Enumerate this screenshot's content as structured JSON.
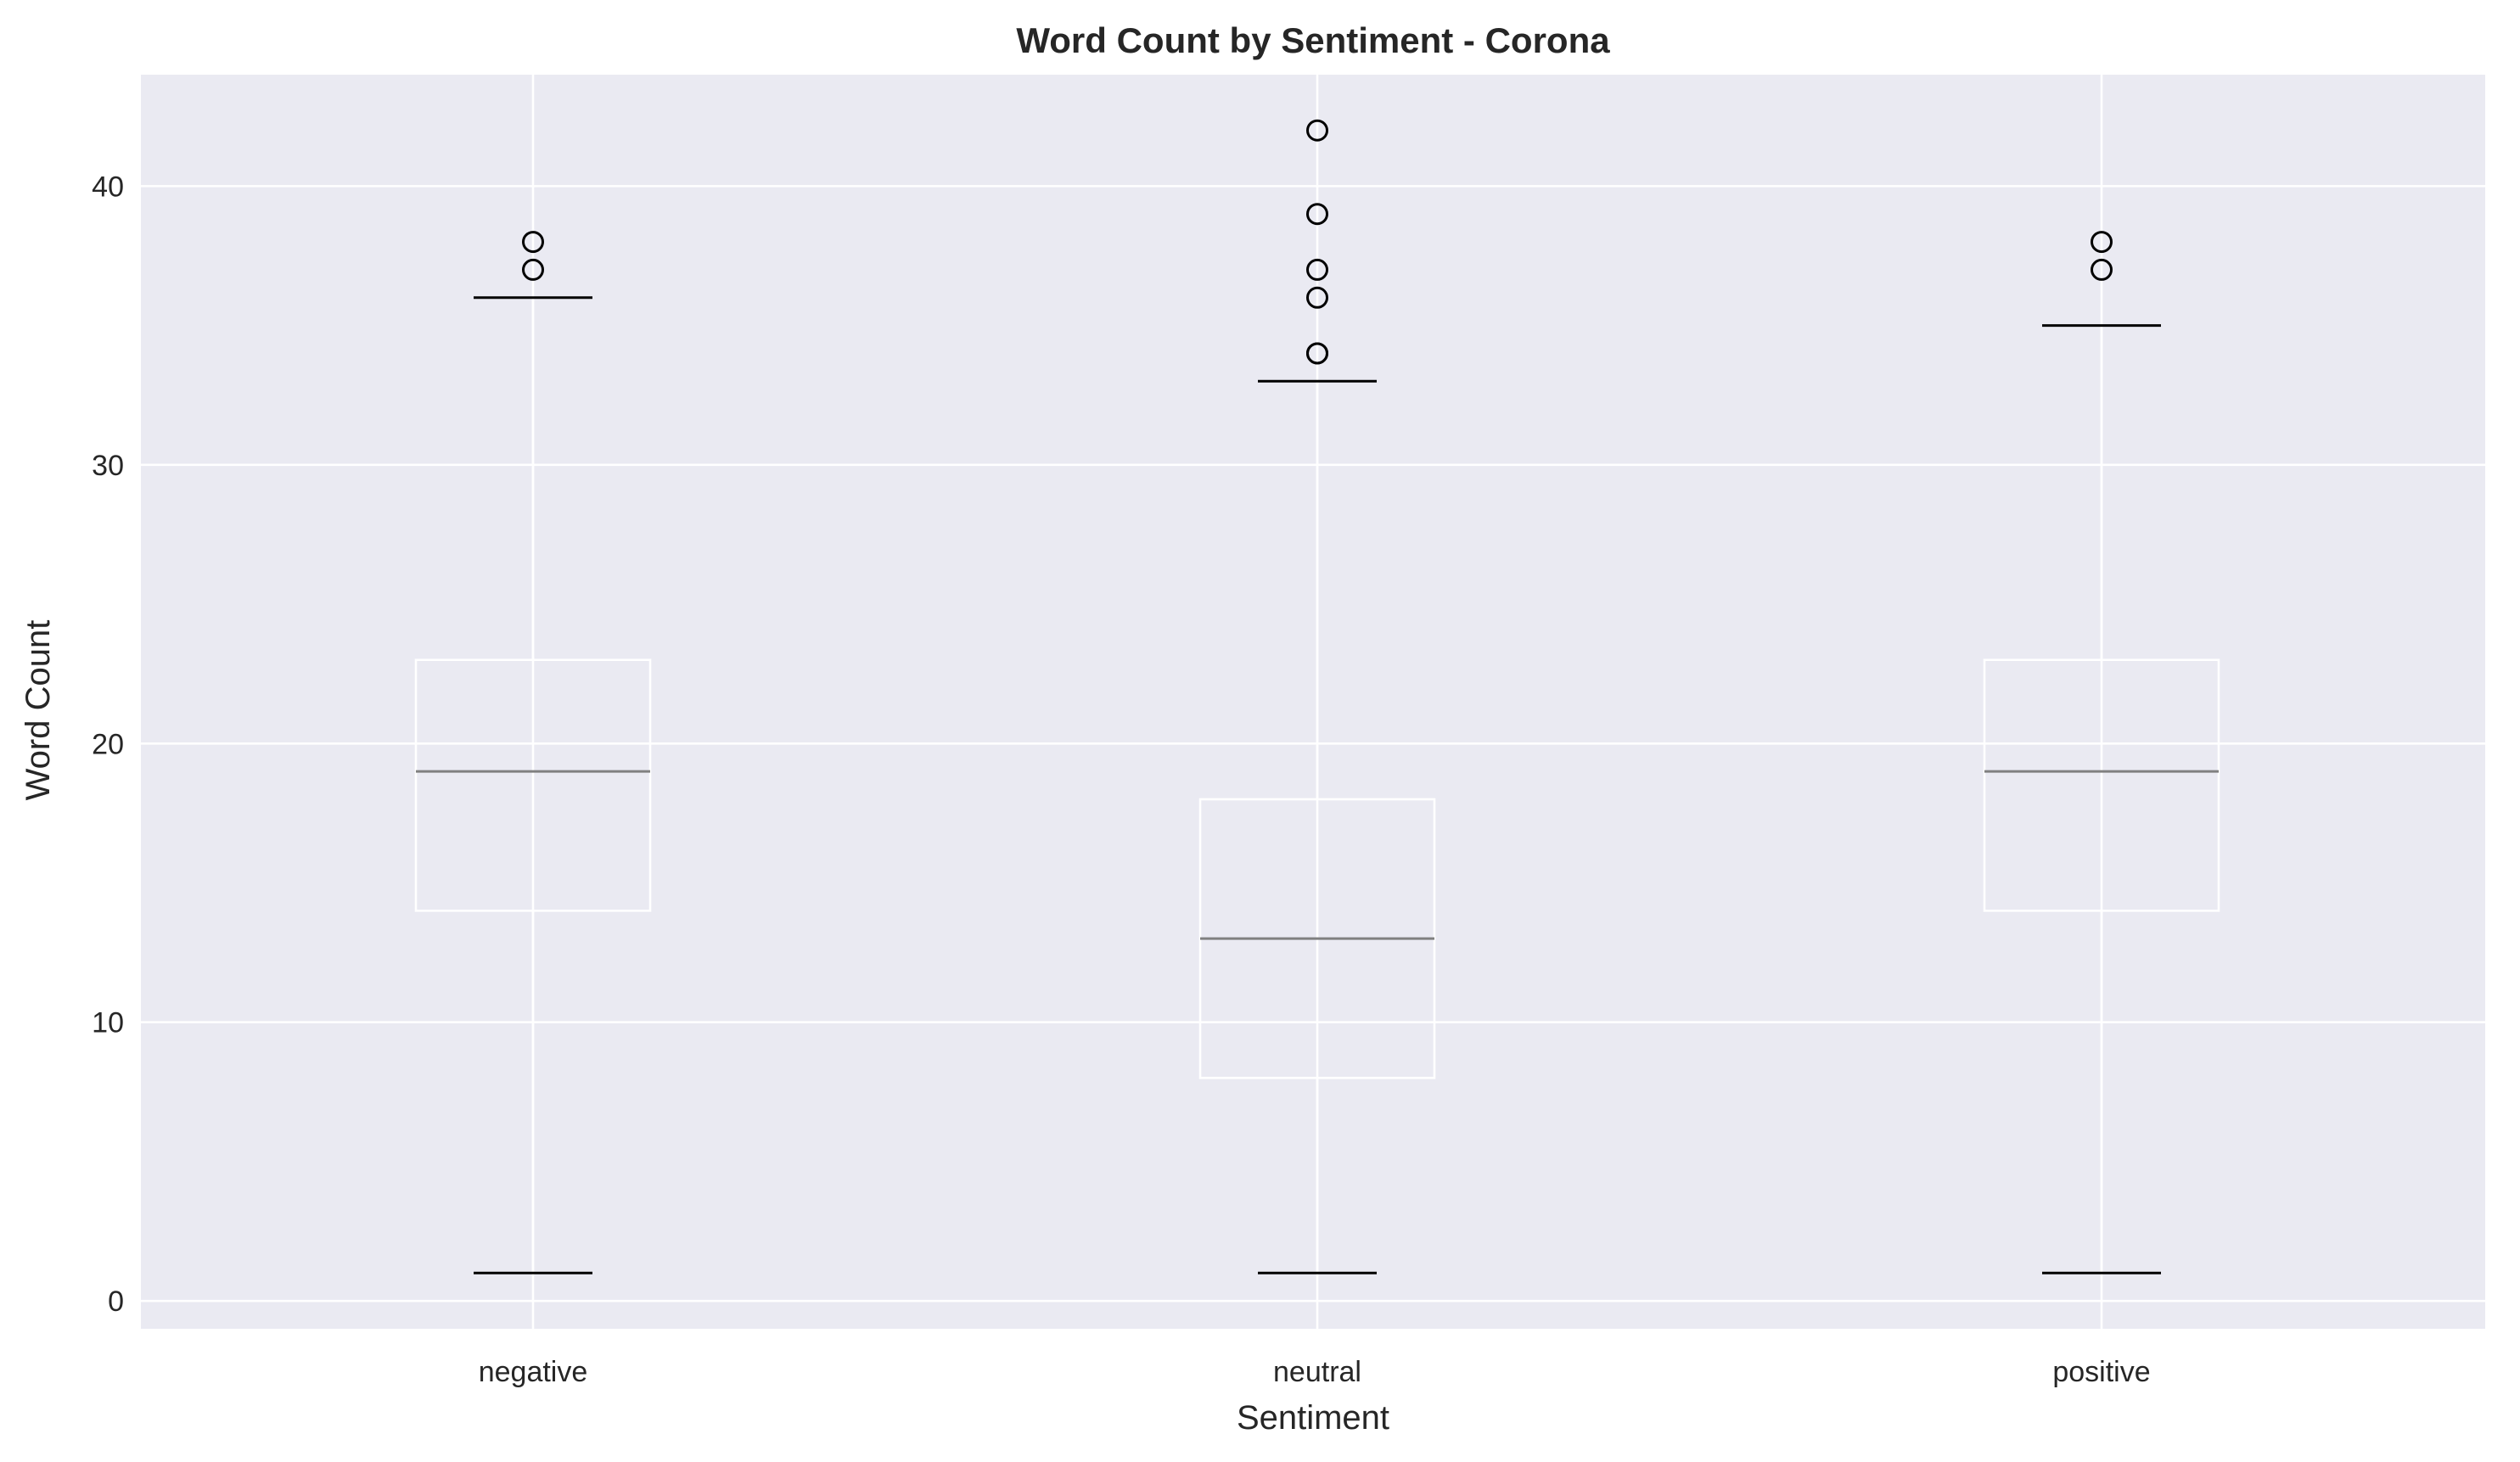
{
  "chart_data": {
    "type": "box",
    "title": "Word Count by Sentiment - Corona",
    "xlabel": "Sentiment",
    "ylabel": "Word Count",
    "ylim": [
      -1,
      44
    ],
    "yticks": [
      0,
      10,
      20,
      30,
      40
    ],
    "grid": true,
    "categories": [
      "negative",
      "neutral",
      "positive"
    ],
    "boxes": [
      {
        "category": "negative",
        "whisker_low": 1,
        "q1": 14,
        "median": 19,
        "q3": 23,
        "whisker_high": 36,
        "outliers": [
          37,
          38
        ]
      },
      {
        "category": "neutral",
        "whisker_low": 1,
        "q1": 8,
        "median": 13,
        "q3": 18,
        "whisker_high": 33,
        "outliers": [
          34,
          34,
          36,
          37,
          39,
          42
        ]
      },
      {
        "category": "positive",
        "whisker_low": 1,
        "q1": 14,
        "median": 19,
        "q3": 23,
        "whisker_high": 35,
        "outliers": [
          37,
          38
        ]
      }
    ],
    "colors": {
      "background": "#eaeaf2",
      "grid": "#ffffff",
      "box": "#ffffff",
      "median": "#808080",
      "cap": "#000000",
      "outlier": "#000000"
    }
  }
}
